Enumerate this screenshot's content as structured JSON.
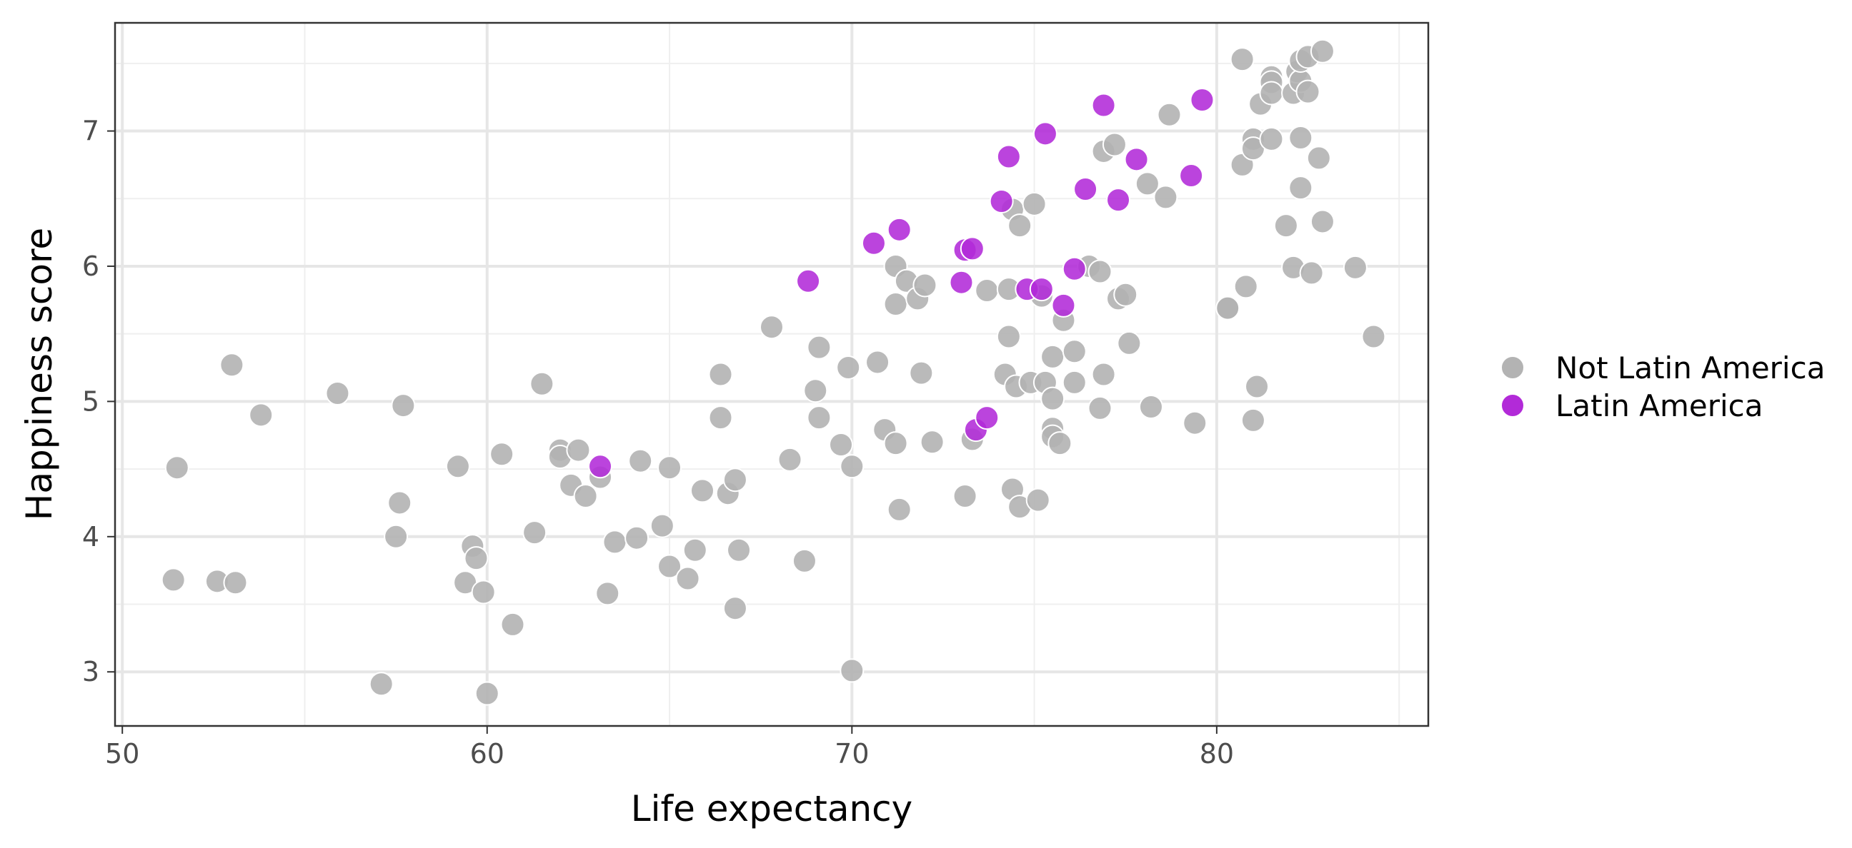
{
  "chart_data": {
    "type": "scatter",
    "xlabel": "Life expectancy",
    "ylabel": "Happiness score",
    "xlim": [
      49.8,
      85.8
    ],
    "ylim": [
      2.6,
      7.8
    ],
    "x_ticks": [
      50,
      60,
      70,
      80
    ],
    "y_ticks": [
      3,
      4,
      5,
      6,
      7
    ],
    "grid": true,
    "legend": "right",
    "series": [
      {
        "name": "Not Latin America",
        "color": "#b3b3b3",
        "points": [
          [
            51.5,
            4.51
          ],
          [
            51.4,
            3.68
          ],
          [
            52.6,
            3.67
          ],
          [
            53.0,
            5.27
          ],
          [
            53.1,
            3.66
          ],
          [
            53.8,
            4.9
          ],
          [
            55.9,
            5.06
          ],
          [
            57.1,
            2.91
          ],
          [
            57.5,
            4.0
          ],
          [
            57.6,
            4.25
          ],
          [
            57.7,
            4.97
          ],
          [
            59.2,
            4.52
          ],
          [
            59.4,
            3.66
          ],
          [
            59.6,
            3.93
          ],
          [
            59.7,
            3.84
          ],
          [
            59.9,
            3.59
          ],
          [
            60.0,
            2.84
          ],
          [
            60.4,
            4.61
          ],
          [
            60.7,
            3.35
          ],
          [
            61.3,
            4.03
          ],
          [
            61.5,
            5.13
          ],
          [
            62.0,
            4.64
          ],
          [
            62.0,
            4.59
          ],
          [
            62.3,
            4.38
          ],
          [
            62.5,
            4.64
          ],
          [
            62.7,
            4.3
          ],
          [
            63.1,
            4.44
          ],
          [
            63.3,
            3.58
          ],
          [
            63.5,
            3.96
          ],
          [
            64.1,
            3.99
          ],
          [
            64.2,
            4.56
          ],
          [
            64.8,
            4.08
          ],
          [
            65.0,
            3.78
          ],
          [
            65.0,
            4.51
          ],
          [
            65.5,
            3.69
          ],
          [
            65.7,
            3.9
          ],
          [
            65.9,
            4.34
          ],
          [
            66.4,
            5.2
          ],
          [
            66.4,
            4.88
          ],
          [
            66.6,
            4.32
          ],
          [
            66.8,
            3.47
          ],
          [
            66.8,
            4.42
          ],
          [
            66.9,
            3.9
          ],
          [
            67.8,
            5.55
          ],
          [
            68.3,
            4.57
          ],
          [
            68.7,
            3.82
          ],
          [
            69.0,
            5.08
          ],
          [
            69.1,
            5.4
          ],
          [
            69.1,
            4.88
          ],
          [
            69.7,
            4.68
          ],
          [
            69.9,
            5.25
          ],
          [
            70.0,
            3.01
          ],
          [
            70.0,
            4.52
          ],
          [
            70.7,
            5.29
          ],
          [
            70.9,
            4.79
          ],
          [
            71.2,
            4.69
          ],
          [
            71.2,
            6.0
          ],
          [
            71.2,
            5.72
          ],
          [
            71.3,
            4.2
          ],
          [
            71.5,
            5.89
          ],
          [
            71.8,
            5.76
          ],
          [
            71.9,
            5.21
          ],
          [
            72.0,
            5.86
          ],
          [
            72.2,
            4.7
          ],
          [
            73.1,
            4.3
          ],
          [
            73.3,
            4.72
          ],
          [
            73.7,
            5.82
          ],
          [
            74.2,
            5.2
          ],
          [
            74.3,
            5.83
          ],
          [
            74.3,
            5.48
          ],
          [
            74.4,
            6.42
          ],
          [
            74.4,
            4.35
          ],
          [
            74.5,
            5.11
          ],
          [
            74.6,
            6.3
          ],
          [
            74.6,
            4.22
          ],
          [
            74.9,
            5.14
          ],
          [
            75.0,
            6.46
          ],
          [
            75.1,
            4.27
          ],
          [
            75.2,
            5.78
          ],
          [
            75.3,
            5.14
          ],
          [
            75.5,
            5.33
          ],
          [
            75.5,
            5.02
          ],
          [
            75.5,
            4.8
          ],
          [
            75.5,
            4.74
          ],
          [
            75.7,
            4.69
          ],
          [
            75.8,
            5.6
          ],
          [
            76.1,
            5.37
          ],
          [
            76.1,
            5.14
          ],
          [
            76.5,
            6.0
          ],
          [
            76.8,
            5.96
          ],
          [
            76.8,
            4.95
          ],
          [
            76.9,
            6.85
          ],
          [
            76.9,
            5.2
          ],
          [
            77.2,
            6.9
          ],
          [
            77.3,
            5.76
          ],
          [
            77.5,
            5.79
          ],
          [
            77.6,
            5.43
          ],
          [
            78.1,
            6.61
          ],
          [
            78.2,
            4.96
          ],
          [
            78.6,
            6.51
          ],
          [
            78.7,
            7.12
          ],
          [
            79.4,
            4.84
          ],
          [
            80.3,
            5.69
          ],
          [
            80.3,
            5.69
          ],
          [
            80.7,
            6.75
          ],
          [
            80.7,
            7.53
          ],
          [
            80.8,
            5.85
          ],
          [
            81.0,
            6.94
          ],
          [
            81.0,
            6.87
          ],
          [
            81.0,
            4.86
          ],
          [
            81.1,
            5.11
          ],
          [
            81.2,
            7.2
          ],
          [
            81.5,
            7.4
          ],
          [
            81.5,
            7.36
          ],
          [
            81.5,
            7.28
          ],
          [
            81.5,
            6.94
          ],
          [
            81.9,
            6.3
          ],
          [
            82.1,
            5.99
          ],
          [
            82.1,
            7.28
          ],
          [
            82.2,
            7.44
          ],
          [
            82.3,
            7.37
          ],
          [
            82.3,
            7.52
          ],
          [
            82.3,
            6.58
          ],
          [
            82.3,
            6.95
          ],
          [
            82.5,
            7.55
          ],
          [
            82.5,
            7.29
          ],
          [
            82.6,
            5.95
          ],
          [
            82.8,
            6.8
          ],
          [
            82.9,
            6.33
          ],
          [
            82.9,
            7.59
          ],
          [
            83.8,
            5.99
          ],
          [
            84.3,
            5.48
          ]
        ]
      },
      {
        "name": "Latin America",
        "color": "#b22ad8",
        "points": [
          [
            63.1,
            4.52
          ],
          [
            68.8,
            5.89
          ],
          [
            70.6,
            6.17
          ],
          [
            71.3,
            6.27
          ],
          [
            73.0,
            5.88
          ],
          [
            73.1,
            6.12
          ],
          [
            73.3,
            6.13
          ],
          [
            73.4,
            4.79
          ],
          [
            73.7,
            4.88
          ],
          [
            74.1,
            6.48
          ],
          [
            74.3,
            6.81
          ],
          [
            74.8,
            5.83
          ],
          [
            75.2,
            5.83
          ],
          [
            75.3,
            6.98
          ],
          [
            75.8,
            5.71
          ],
          [
            76.1,
            5.98
          ],
          [
            76.4,
            6.57
          ],
          [
            76.9,
            7.19
          ],
          [
            77.3,
            6.49
          ],
          [
            77.8,
            6.79
          ],
          [
            79.3,
            6.67
          ],
          [
            79.6,
            7.23
          ]
        ]
      }
    ]
  }
}
